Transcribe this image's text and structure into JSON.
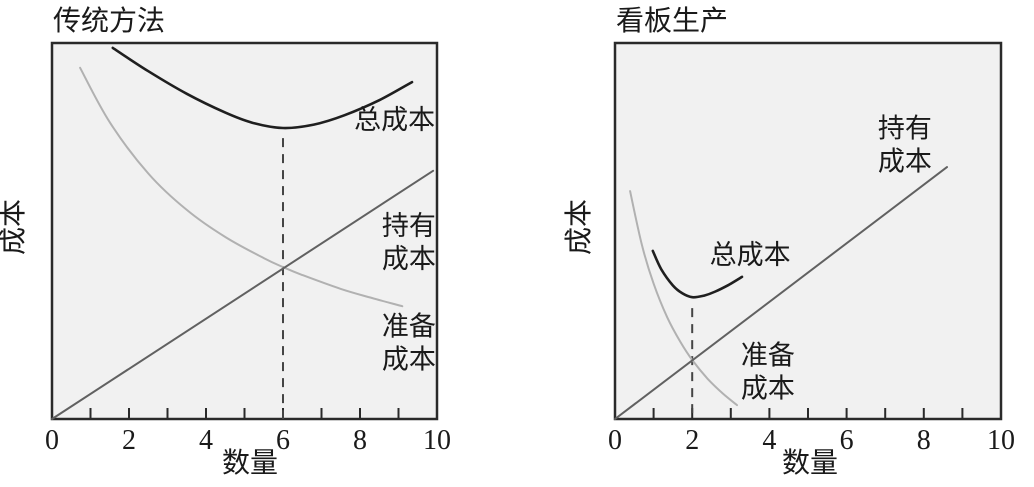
{
  "figure": {
    "background": "#ffffff",
    "text_color": "#1a1a1a"
  },
  "chart_data": [
    {
      "type": "line",
      "title": "传统方法",
      "xlabel": "数量",
      "ylabel": "成本",
      "xlim": [
        0,
        10
      ],
      "ylim": [
        0,
        100
      ],
      "grid": false,
      "legend_position": "inline-annotations",
      "plot_bg": "#f1f1f1",
      "border_color": "#2a2a2a",
      "x_tick_labels": [
        0,
        2,
        4,
        6,
        8,
        10
      ],
      "x_tick_marks": [
        1,
        2,
        3,
        4,
        5,
        6,
        7,
        8,
        9
      ],
      "optimal_quantity": 6,
      "dashed_guide": {
        "x": 6,
        "y_top": 74.7,
        "color": "#454545"
      },
      "series": [
        {
          "key": "setup-cost",
          "name": "准备成本",
          "color": "#b1b1b1",
          "width": 2,
          "points": [
            [
              0.73,
              93.4
            ],
            [
              1.5,
              78.9
            ],
            [
              2.5,
              65.3
            ],
            [
              3.5,
              55.6
            ],
            [
              4.5,
              48.4
            ],
            [
              5.5,
              42.8
            ],
            [
              6,
              40.4
            ],
            [
              6.5,
              38.3
            ],
            [
              7.5,
              34.6
            ],
            [
              8.3,
              32.2
            ],
            [
              9.1,
              30
            ]
          ]
        },
        {
          "key": "holding-cost",
          "name": "持有成本",
          "color": "#616161",
          "width": 2,
          "points": [
            [
              0,
              0
            ],
            [
              9.9,
              66
            ]
          ]
        },
        {
          "key": "total-cost",
          "name": "总成本",
          "color": "#1f1f1f",
          "width": 2.6,
          "points": [
            [
              1.58,
              98.7
            ],
            [
              2.5,
              92.5
            ],
            [
              3.5,
              86.5
            ],
            [
              4.5,
              81.5
            ],
            [
              5.2,
              78.8
            ],
            [
              6,
              77.4
            ],
            [
              6.8,
              78.3
            ],
            [
              7.6,
              80.8
            ],
            [
              8.5,
              84.8
            ],
            [
              9.35,
              89.6
            ]
          ]
        }
      ],
      "annotations": [
        {
          "key": "label-total-cost",
          "lines": [
            "总成本"
          ],
          "x": 8.9,
          "y": 79.5
        },
        {
          "key": "label-holding-cost",
          "lines": [
            "持有",
            "成本"
          ],
          "x": 9.27,
          "y": 47
        },
        {
          "key": "label-setup-cost",
          "lines": [
            "准备",
            "成本"
          ],
          "x": 9.27,
          "y": 20.2
        }
      ]
    },
    {
      "type": "line",
      "title": "看板生产",
      "xlabel": "数量",
      "ylabel": "成本",
      "xlim": [
        0,
        10
      ],
      "ylim": [
        0,
        100
      ],
      "grid": false,
      "legend_position": "inline-annotations",
      "plot_bg": "#f1f1f1",
      "border_color": "#2a2a2a",
      "x_tick_labels": [
        0,
        2,
        4,
        6,
        8,
        10
      ],
      "x_tick_marks": [
        1,
        2,
        3,
        4,
        5,
        6,
        7,
        8,
        9
      ],
      "optimal_quantity": 2,
      "dashed_guide": {
        "x": 2,
        "y_top": 29.5,
        "color": "#454545"
      },
      "series": [
        {
          "key": "setup-cost",
          "name": "准备成本",
          "color": "#b1b1b1",
          "width": 2,
          "points": [
            [
              0.39,
              60.6
            ],
            [
              0.7,
              46.2
            ],
            [
              1.0,
              36.0
            ],
            [
              1.35,
              27.1
            ],
            [
              1.7,
              20.4
            ],
            [
              2,
              15.7
            ],
            [
              2.4,
              10.7
            ],
            [
              2.8,
              6.7
            ],
            [
              3.16,
              3.7
            ]
          ]
        },
        {
          "key": "holding-cost",
          "name": "持有成本",
          "color": "#616161",
          "width": 2,
          "points": [
            [
              0,
              0
            ],
            [
              8.6,
              67
            ]
          ]
        },
        {
          "key": "total-cost",
          "name": "总成本",
          "color": "#1f1f1f",
          "width": 2.6,
          "points": [
            [
              0.98,
              44.7
            ],
            [
              1.2,
              39.8
            ],
            [
              1.5,
              35.5
            ],
            [
              1.75,
              33.4
            ],
            [
              2,
              32.4
            ],
            [
              2.3,
              32.8
            ],
            [
              2.6,
              33.9
            ],
            [
              2.95,
              35.7
            ],
            [
              3.29,
              37.8
            ]
          ]
        }
      ],
      "annotations": [
        {
          "key": "label-total-cost",
          "lines": [
            "总成本"
          ],
          "x": 3.5,
          "y": 43.6
        },
        {
          "key": "label-holding-cost",
          "lines": [
            "持有",
            "成本"
          ],
          "x": 7.51,
          "y": 72.9
        },
        {
          "key": "label-setup-cost",
          "lines": [
            "准备",
            "成本"
          ],
          "x": 3.96,
          "y": 12.5
        }
      ]
    }
  ]
}
